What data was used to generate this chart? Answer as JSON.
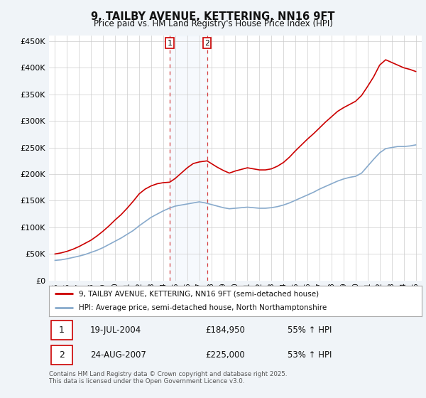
{
  "title": "9, TAILBY AVENUE, KETTERING, NN16 9FT",
  "subtitle": "Price paid vs. HM Land Registry's House Price Index (HPI)",
  "legend_line1": "9, TAILBY AVENUE, KETTERING, NN16 9FT (semi-detached house)",
  "legend_line2": "HPI: Average price, semi-detached house, North Northamptonshire",
  "footnote": "Contains HM Land Registry data © Crown copyright and database right 2025.\nThis data is licensed under the Open Government Licence v3.0.",
  "transaction1_date": "19-JUL-2004",
  "transaction1_price": "£184,950",
  "transaction1_hpi": "55% ↑ HPI",
  "transaction2_date": "24-AUG-2007",
  "transaction2_price": "£225,000",
  "transaction2_hpi": "53% ↑ HPI",
  "vline1_x": 2004.54,
  "vline2_x": 2007.65,
  "house_color": "#cc0000",
  "hpi_color": "#88aacc",
  "background_color": "#f0f4f8",
  "plot_bg_color": "#ffffff",
  "ylim": [
    0,
    460000
  ],
  "xlim_start": 1994.5,
  "xlim_end": 2025.5,
  "yticks": [
    0,
    50000,
    100000,
    150000,
    200000,
    250000,
    300000,
    350000,
    400000,
    450000
  ],
  "ytick_labels": [
    "£0",
    "£50K",
    "£100K",
    "£150K",
    "£200K",
    "£250K",
    "£300K",
    "£350K",
    "£400K",
    "£450K"
  ],
  "xticks": [
    1995,
    1996,
    1997,
    1998,
    1999,
    2000,
    2001,
    2002,
    2003,
    2004,
    2005,
    2006,
    2007,
    2008,
    2009,
    2010,
    2011,
    2012,
    2013,
    2014,
    2015,
    2016,
    2017,
    2018,
    2019,
    2020,
    2021,
    2022,
    2023,
    2024,
    2025
  ],
  "years_hpi": [
    1995,
    1995.5,
    1996,
    1996.5,
    1997,
    1997.5,
    1998,
    1998.5,
    1999,
    1999.5,
    2000,
    2000.5,
    2001,
    2001.5,
    2002,
    2002.5,
    2003,
    2003.5,
    2004,
    2004.5,
    2005,
    2005.5,
    2006,
    2006.5,
    2007,
    2007.5,
    2008,
    2008.5,
    2009,
    2009.5,
    2010,
    2010.5,
    2011,
    2011.5,
    2012,
    2012.5,
    2013,
    2013.5,
    2014,
    2014.5,
    2015,
    2015.5,
    2016,
    2016.5,
    2017,
    2017.5,
    2018,
    2018.5,
    2019,
    2019.5,
    2020,
    2020.5,
    2021,
    2021.5,
    2022,
    2022.5,
    2023,
    2023.5,
    2024,
    2024.5,
    2025
  ],
  "hpi_values": [
    38000,
    39000,
    41000,
    43500,
    46000,
    49000,
    53000,
    57000,
    62000,
    68000,
    74000,
    80000,
    87000,
    94000,
    103000,
    111000,
    119000,
    125000,
    131000,
    136000,
    140000,
    142000,
    144000,
    146000,
    148000,
    146000,
    143000,
    140000,
    137000,
    135000,
    136000,
    137000,
    138000,
    137000,
    136000,
    136000,
    137000,
    139000,
    142000,
    146000,
    151000,
    156000,
    161000,
    166000,
    172000,
    177000,
    182000,
    187000,
    191000,
    194000,
    196000,
    202000,
    215000,
    228000,
    240000,
    248000,
    250000,
    252000,
    252000,
    253000,
    255000
  ],
  "years_house": [
    1995.0,
    1995.5,
    1996.0,
    1996.5,
    1997.0,
    1997.5,
    1998.0,
    1998.5,
    1999.0,
    1999.5,
    2000.0,
    2000.5,
    2001.0,
    2001.5,
    2002.0,
    2002.5,
    2003.0,
    2003.5,
    2004.0,
    2004.54,
    2005.0,
    2005.5,
    2006.0,
    2006.5,
    2007.0,
    2007.65,
    2008.0,
    2008.5,
    2009.0,
    2009.5,
    2010.0,
    2010.5,
    2011.0,
    2011.5,
    2012.0,
    2012.5,
    2013.0,
    2013.5,
    2014.0,
    2014.5,
    2015.0,
    2015.5,
    2016.0,
    2016.5,
    2017.0,
    2017.5,
    2018.0,
    2018.5,
    2019.0,
    2019.5,
    2020.0,
    2020.5,
    2021.0,
    2021.5,
    2022.0,
    2022.5,
    2023.0,
    2023.5,
    2024.0,
    2024.5,
    2025.0
  ],
  "house_values": [
    50000,
    52000,
    55000,
    59000,
    64000,
    70000,
    76000,
    84000,
    93000,
    103000,
    114000,
    124000,
    136000,
    149000,
    163000,
    172000,
    178000,
    182000,
    184000,
    184950,
    192000,
    202000,
    212000,
    220000,
    223000,
    225000,
    220000,
    213000,
    207000,
    202000,
    206000,
    209000,
    212000,
    210000,
    208000,
    208000,
    210000,
    215000,
    222000,
    232000,
    244000,
    255000,
    266000,
    276000,
    287000,
    298000,
    308000,
    318000,
    325000,
    331000,
    337000,
    348000,
    365000,
    383000,
    405000,
    415000,
    410000,
    405000,
    400000,
    397000,
    393000
  ]
}
